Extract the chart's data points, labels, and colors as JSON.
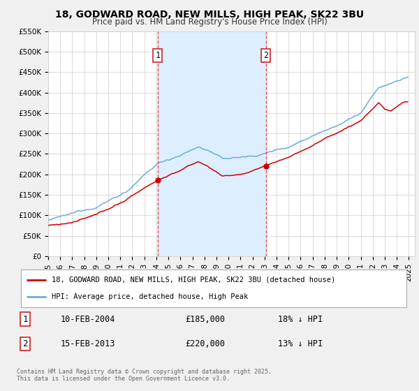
{
  "title": "18, GODWARD ROAD, NEW MILLS, HIGH PEAK, SK22 3BU",
  "subtitle": "Price paid vs. HM Land Registry's House Price Index (HPI)",
  "ylim": [
    0,
    550000
  ],
  "yticks": [
    0,
    50000,
    100000,
    150000,
    200000,
    250000,
    300000,
    350000,
    400000,
    450000,
    500000,
    550000
  ],
  "ytick_labels": [
    "£0",
    "£50K",
    "£100K",
    "£150K",
    "£200K",
    "£250K",
    "£300K",
    "£350K",
    "£400K",
    "£450K",
    "£500K",
    "£550K"
  ],
  "hpi_color": "#6baed6",
  "price_color": "#cc0000",
  "vline_color": "#ee3333",
  "shade_color": "#ddeeff",
  "background_color": "#f0f0f0",
  "plot_bg_color": "#ffffff",
  "transaction1_price": 185000,
  "transaction1_label": "£185,000",
  "transaction1_hpi": "18% ↓ HPI",
  "transaction1_date": "10-FEB-2004",
  "transaction1_year": 2004.11,
  "transaction2_price": 220000,
  "transaction2_label": "£220,000",
  "transaction2_hpi": "13% ↓ HPI",
  "transaction2_date": "15-FEB-2013",
  "transaction2_year": 2013.12,
  "footnote": "Contains HM Land Registry data © Crown copyright and database right 2025.\nThis data is licensed under the Open Government Licence v3.0.",
  "legend_label_red": "18, GODWARD ROAD, NEW MILLS, HIGH PEAK, SK22 3BU (detached house)",
  "legend_label_blue": "HPI: Average price, detached house, High Peak",
  "xlim_start": 1995,
  "xlim_end": 2025.5
}
